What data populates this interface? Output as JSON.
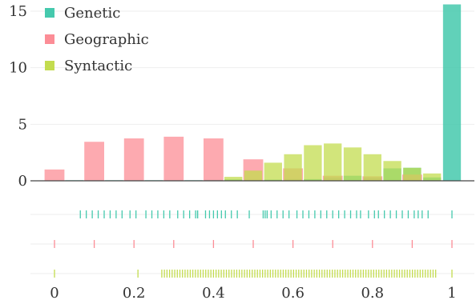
{
  "chart_data": {
    "type": "bar",
    "title": "",
    "xlabel": "",
    "ylabel": "",
    "xlim": [
      -0.07,
      1.05
    ],
    "ylim": [
      0,
      15.5
    ],
    "grid": true,
    "legend_position": "top-left",
    "x_ticks": [
      0,
      0.2,
      0.4,
      0.6,
      0.8,
      1
    ],
    "x_tick_labels": [
      "0",
      "0.2",
      "0.4",
      "0.6",
      "0.8",
      "1"
    ],
    "y_ticks": [
      0,
      5,
      10,
      15
    ],
    "y_tick_labels": [
      "0",
      "5",
      "10",
      "15"
    ],
    "bin_width": 0.05,
    "series": [
      {
        "name": "Genetic",
        "color": "#45c9ad",
        "bins": [
          [
            0.05,
            0.05
          ],
          [
            0.1,
            0.05
          ],
          [
            0.15,
            0.05
          ],
          [
            0.2,
            0.05
          ],
          [
            0.25,
            0.05
          ],
          [
            0.3,
            0.05
          ],
          [
            0.35,
            0.05
          ],
          [
            0.4,
            0.08
          ],
          [
            0.45,
            0.12
          ],
          [
            0.5,
            0.1
          ],
          [
            0.55,
            0.1
          ],
          [
            0.6,
            0.15
          ],
          [
            0.65,
            0.15
          ],
          [
            0.7,
            0.3
          ],
          [
            0.75,
            0.45
          ],
          [
            0.8,
            0.3
          ],
          [
            0.85,
            1.1
          ],
          [
            0.9,
            1.15
          ],
          [
            0.95,
            0.3
          ],
          [
            1.0,
            15.6
          ]
        ],
        "rug": [
          0.065,
          0.08,
          0.095,
          0.11,
          0.125,
          0.14,
          0.155,
          0.17,
          0.19,
          0.205,
          0.23,
          0.245,
          0.26,
          0.275,
          0.29,
          0.31,
          0.325,
          0.34,
          0.355,
          0.36,
          0.36,
          0.38,
          0.39,
          0.4,
          0.41,
          0.42,
          0.43,
          0.445,
          0.46,
          0.49,
          0.525,
          0.53,
          0.535,
          0.545,
          0.56,
          0.575,
          0.59,
          0.61,
          0.625,
          0.64,
          0.655,
          0.67,
          0.685,
          0.7,
          0.715,
          0.73,
          0.745,
          0.76,
          0.77,
          0.79,
          0.805,
          0.815,
          0.83,
          0.845,
          0.86,
          0.875,
          0.89,
          0.905,
          0.915,
          0.925,
          0.94,
          1.0
        ]
      },
      {
        "name": "Geographic",
        "color": "#fc8d96",
        "bins": [
          [
            0.0,
            1.0
          ],
          [
            0.1,
            3.45
          ],
          [
            0.2,
            3.75
          ],
          [
            0.3,
            3.9
          ],
          [
            0.4,
            3.75
          ],
          [
            0.5,
            1.9
          ],
          [
            0.6,
            1.1
          ],
          [
            0.7,
            0.45
          ],
          [
            0.8,
            0.4
          ],
          [
            0.9,
            0.55
          ]
        ],
        "rug": [
          0.0,
          0.1,
          0.2,
          0.3,
          0.4,
          0.5,
          0.6,
          0.7,
          0.8,
          0.9,
          1.0
        ]
      },
      {
        "name": "Syntactic",
        "color": "#c3dc4f",
        "bins": [
          [
            0.45,
            0.35
          ],
          [
            0.5,
            0.9
          ],
          [
            0.55,
            1.6
          ],
          [
            0.6,
            2.35
          ],
          [
            0.65,
            3.15
          ],
          [
            0.7,
            3.3
          ],
          [
            0.75,
            2.95
          ],
          [
            0.8,
            2.35
          ],
          [
            0.85,
            1.75
          ],
          [
            0.9,
            1.15
          ],
          [
            0.95,
            0.65
          ]
        ],
        "rug_x_start": 0.27,
        "rug_x_end": 0.96,
        "rug_step": 0.0065,
        "rug_extra": [
          0.0,
          0.21,
          1.0
        ]
      }
    ]
  }
}
